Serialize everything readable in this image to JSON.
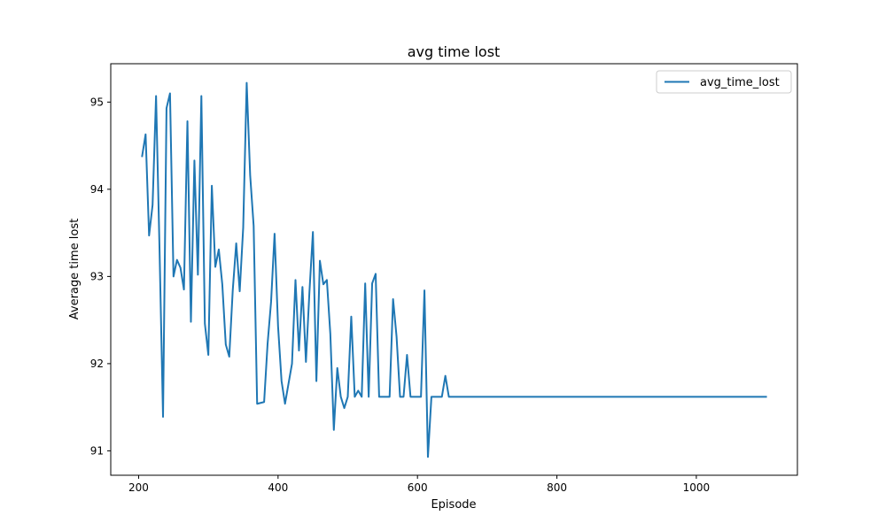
{
  "chart_data": {
    "type": "line",
    "title": "avg time lost",
    "xlabel": "Episode",
    "ylabel": "Average time lost",
    "xlim": [
      160,
      1145
    ],
    "ylim": [
      90.72,
      95.44
    ],
    "xticks": [
      200,
      400,
      600,
      800,
      1000
    ],
    "yticks": [
      91,
      92,
      93,
      94,
      95
    ],
    "grid": false,
    "legend_position": "top-right",
    "series": [
      {
        "name": "avg_time_lost",
        "color": "#1f77b4",
        "x": [
          205,
          210,
          215,
          220,
          225,
          230,
          235,
          240,
          245,
          250,
          255,
          260,
          265,
          270,
          275,
          280,
          285,
          290,
          295,
          300,
          305,
          310,
          315,
          320,
          325,
          330,
          335,
          340,
          345,
          350,
          355,
          360,
          365,
          370,
          375,
          380,
          385,
          390,
          395,
          400,
          405,
          410,
          415,
          420,
          425,
          430,
          435,
          440,
          445,
          450,
          455,
          460,
          465,
          470,
          475,
          480,
          485,
          490,
          495,
          500,
          505,
          510,
          515,
          520,
          525,
          530,
          535,
          540,
          545,
          550,
          555,
          560,
          565,
          570,
          575,
          580,
          585,
          590,
          595,
          600,
          605,
          610,
          615,
          620,
          625,
          630,
          635,
          640,
          645,
          650,
          700,
          800,
          900,
          1000,
          1100
        ],
        "y": [
          94.38,
          94.63,
          93.47,
          93.82,
          95.07,
          93.3,
          91.39,
          94.93,
          95.1,
          93.0,
          93.19,
          93.1,
          92.85,
          94.78,
          92.48,
          94.33,
          93.02,
          95.07,
          92.46,
          92.1,
          94.04,
          93.11,
          93.31,
          92.91,
          92.22,
          92.08,
          92.84,
          93.38,
          92.83,
          93.56,
          95.22,
          94.16,
          93.58,
          91.54,
          91.55,
          91.56,
          92.23,
          92.71,
          93.49,
          92.43,
          91.8,
          91.54,
          91.77,
          92.0,
          92.96,
          92.15,
          92.88,
          92.02,
          92.82,
          93.51,
          91.8,
          93.18,
          92.91,
          92.96,
          92.34,
          91.24,
          91.95,
          91.62,
          91.49,
          91.62,
          92.54,
          91.62,
          91.69,
          91.62,
          92.92,
          91.62,
          92.92,
          93.03,
          91.62,
          91.62,
          91.62,
          91.62,
          92.74,
          92.31,
          91.62,
          91.62,
          92.1,
          91.62,
          91.62,
          91.62,
          91.62,
          92.84,
          90.93,
          91.62,
          91.62,
          91.62,
          91.62,
          91.86,
          91.62,
          91.62,
          91.62,
          91.62,
          91.62,
          91.62,
          91.62
        ]
      }
    ]
  }
}
